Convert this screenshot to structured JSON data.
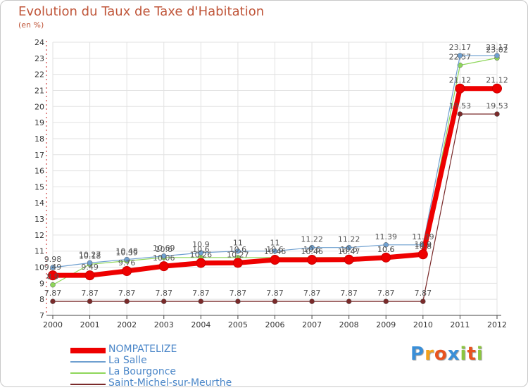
{
  "title": "Evolution du Taux de Taxe d'Habitation",
  "unit_label": "(en %)",
  "logo": {
    "letters": [
      "P",
      "r",
      "o",
      "x",
      "i",
      "t",
      "i"
    ],
    "colors": [
      "#3a8fd8",
      "#f4a21c",
      "#e8531f",
      "#3a8fd8",
      "#8cc63f",
      "#e8531f",
      "#8cc63f"
    ]
  },
  "chart_data": {
    "type": "line",
    "title": "Evolution du Taux de Taxe d'Habitation",
    "ylabel": "(en %)",
    "x": [
      "2000",
      "2001",
      "2002",
      "2003",
      "2004",
      "2005",
      "2006",
      "2007",
      "2008",
      "2009",
      "2010",
      "2011",
      "2012"
    ],
    "ylim": [
      7,
      24
    ],
    "yticks": [
      "7",
      "8",
      "9",
      "10",
      "11",
      "12",
      "13",
      "14",
      "15",
      "16",
      "17",
      "18",
      "19",
      "20",
      "21",
      "22",
      "23",
      "24"
    ],
    "grid": true,
    "series": [
      {
        "name": "Saint-Michel-sur-Meurthe",
        "color": "#7a2a2a",
        "values": [
          7.87,
          7.87,
          7.87,
          7.87,
          7.87,
          7.87,
          7.87,
          7.87,
          7.87,
          7.87,
          7.87,
          19.53,
          19.53
        ],
        "labels": [
          "7.87",
          "7.87",
          "7.87",
          "7.87",
          "7.87",
          "7.87",
          "7.87",
          "7.87",
          "7.87",
          "7.87",
          "7.87",
          "19.53",
          "19.53"
        ]
      },
      {
        "name": "La Bourgonce",
        "color": "#8ed65a",
        "values": [
          8.9,
          10.18,
          10.39,
          10.6,
          10.6,
          10.6,
          10.6,
          10.6,
          10.6,
          10.6,
          10.9,
          22.57,
          23.02
        ],
        "labels": [
          "8.9",
          "10.18",
          "10.39",
          "10.6",
          "10.6",
          "10.6",
          "10.6",
          "10.6",
          "10.6",
          "10.6",
          "10.9",
          "22.57",
          "23.02"
        ]
      },
      {
        "name": "La Salle",
        "color": "#6fa0d0",
        "values": [
          9.98,
          10.27,
          10.48,
          10.69,
          10.9,
          11.0,
          11.0,
          11.22,
          11.22,
          11.39,
          11.39,
          23.17,
          23.17
        ],
        "labels": [
          "9.98",
          "10.27",
          "10.48",
          "10.69",
          "10.9",
          "11",
          "11",
          "11.22",
          "11.22",
          "11.39",
          "11.39",
          "23.17",
          "23.17"
        ]
      },
      {
        "name": "NOMPATELIZE",
        "color": "#ee0000",
        "values": [
          9.49,
          9.49,
          9.76,
          10.06,
          10.26,
          10.27,
          10.46,
          10.46,
          10.47,
          10.6,
          10.8,
          21.12,
          21.12
        ],
        "labels": [
          "9.49",
          "9.49",
          "9.76",
          "10.06",
          "10.26",
          "10.27",
          "10.46",
          "10.46",
          "10.47",
          "10.6",
          "10.8",
          "21.12",
          "21.12"
        ]
      }
    ],
    "legend": [
      "NOMPATELIZE",
      "La Salle",
      "La Bourgonce",
      "Saint-Michel-sur-Meurthe"
    ],
    "legend_placement": "bottom-left"
  }
}
